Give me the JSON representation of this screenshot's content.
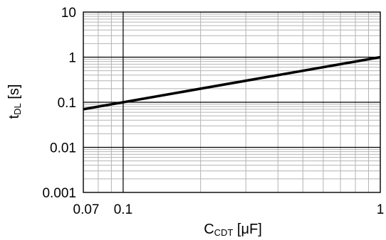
{
  "chart_data": {
    "type": "line",
    "x_scale": "log",
    "y_scale": "log",
    "xlim": [
      0.07,
      1
    ],
    "ylim": [
      0.001,
      10
    ],
    "grid": true,
    "x_ticks": [
      {
        "value": 0.07,
        "label": "0.07"
      },
      {
        "value": 0.1,
        "label": "0.1"
      },
      {
        "value": 1,
        "label": "1"
      }
    ],
    "y_ticks": [
      {
        "value": 0.001,
        "label": "0.001"
      },
      {
        "value": 0.01,
        "label": "0.01"
      },
      {
        "value": 0.1,
        "label": "0.1"
      },
      {
        "value": 1,
        "label": "1"
      },
      {
        "value": 10,
        "label": "10"
      }
    ],
    "xlabel": {
      "main": "C",
      "sub": "CDT",
      "unit": " [μF]"
    },
    "ylabel": {
      "main": "t",
      "sub": "DL",
      "unit": " [s]"
    },
    "series": [
      {
        "x": [
          0.07,
          0.1,
          0.3,
          0.5,
          1
        ],
        "y": [
          0.07,
          0.1,
          0.3,
          0.5,
          1.0
        ]
      }
    ],
    "colors": {
      "line": "#000000",
      "grid_minor": "#b4b4b4",
      "grid_major": "#000000"
    }
  }
}
